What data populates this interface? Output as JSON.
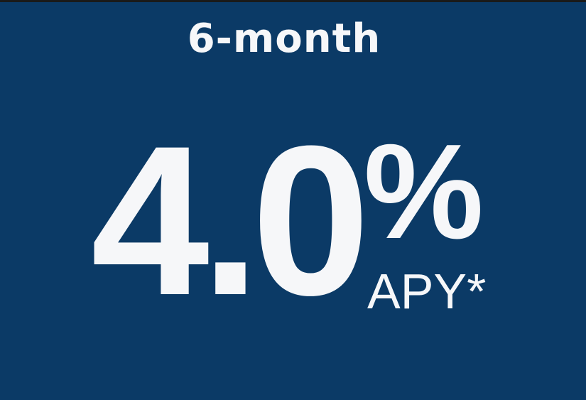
{
  "colors": {
    "background": "#0b3a66",
    "text": "#f6f7f9",
    "top_border": "#1a1a1a"
  },
  "term": "6-month",
  "rate": "4.0",
  "percent_sign": "%",
  "apy_label": "APY*"
}
